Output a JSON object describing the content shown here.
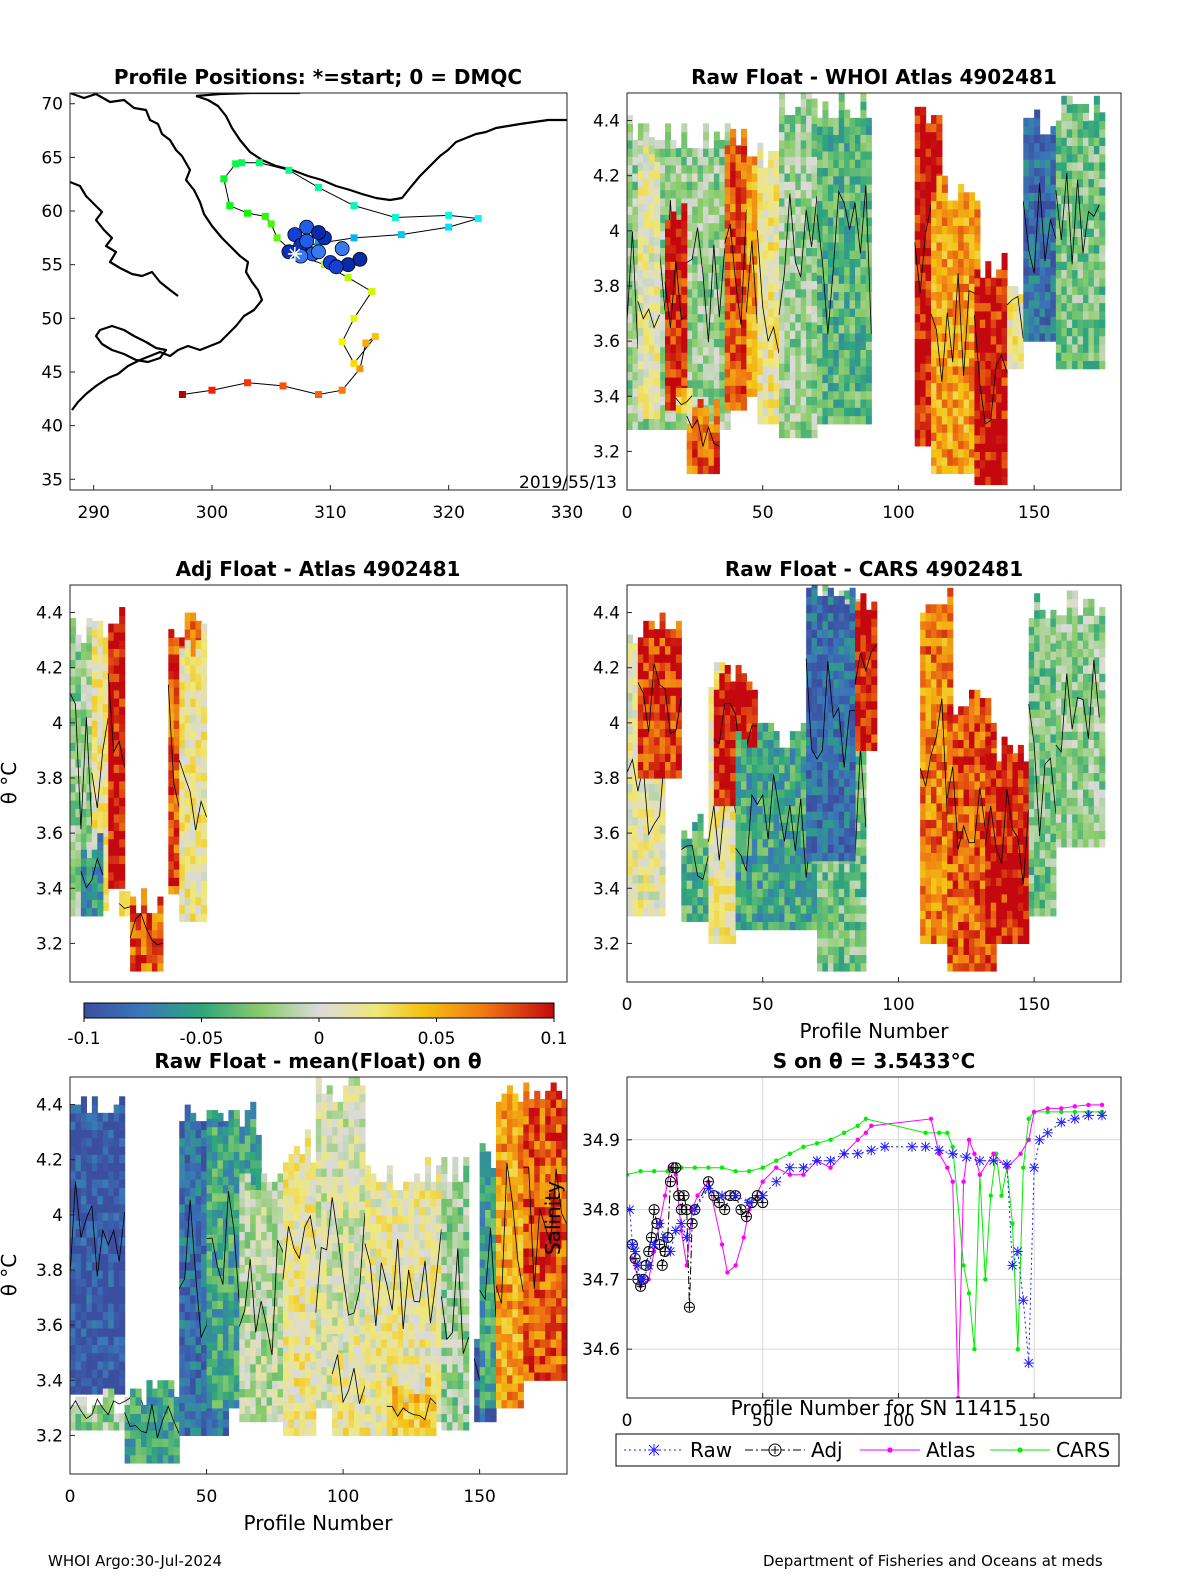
{
  "footer": {
    "left": "WHOI Argo:30-Jul-2024",
    "right": "Department of Fisheries and Oceans at meds"
  },
  "colors": {
    "raw": "#1f1fff",
    "adj": "#000000",
    "atlas": "#ff00ff",
    "cars": "#00ee00"
  },
  "chart_data": [
    {
      "id": "positions",
      "type": "scatter",
      "title": "Profile Positions: *=start; 0 = DMQC",
      "annotation": "2019/55/13",
      "xlim": [
        288,
        330
      ],
      "ylim": [
        34,
        71
      ],
      "xticks": [
        290,
        300,
        310,
        320,
        330
      ],
      "yticks": [
        35,
        40,
        45,
        50,
        55,
        60,
        65,
        70
      ],
      "track_lon": [
        297.5,
        300.0,
        303.0,
        306.0,
        309.0,
        311.0,
        312.5,
        313.0,
        313.8,
        312.0,
        311.0,
        312.0,
        313.5,
        311.5,
        309.5,
        307.5,
        306.5,
        305.5,
        305.0,
        304.5,
        303.0,
        301.5,
        301.0,
        302.0,
        302.5,
        304.0,
        306.5,
        309.0,
        312.0,
        315.5,
        320.0,
        322.5,
        320.0,
        316.0,
        312.0,
        309.0,
        307.0
      ],
      "track_lat": [
        42.9,
        43.3,
        44.0,
        43.7,
        42.9,
        43.3,
        45.3,
        47.7,
        48.3,
        45.8,
        47.8,
        50.0,
        52.5,
        53.8,
        55.0,
        55.8,
        56.5,
        57.5,
        58.8,
        59.5,
        59.8,
        60.5,
        63.0,
        64.4,
        64.5,
        64.5,
        63.8,
        62.2,
        60.5,
        59.4,
        59.6,
        59.3,
        58.5,
        57.8,
        57.5,
        57.0,
        56.5
      ],
      "dmqc_lon": [
        307.0,
        308.0,
        309.5,
        311.0,
        312.5,
        310.0,
        308.5,
        307.5,
        309.0,
        311.5,
        310.5,
        308.0,
        306.5,
        307.5,
        309.0
      ],
      "dmqc_lat": [
        57.8,
        58.5,
        57.5,
        56.5,
        55.5,
        55.2,
        56.0,
        56.8,
        56.2,
        55.0,
        54.8,
        57.2,
        56.2,
        55.8,
        58.0
      ],
      "start_lon": 307.0,
      "start_lat": 56.0
    },
    {
      "id": "raw-atlas",
      "type": "heatmap",
      "title": "Raw Float - WHOI Atlas  4902481",
      "xlim": [
        0,
        182
      ],
      "ylim": [
        3.06,
        4.5
      ],
      "xticks": [
        0,
        50,
        100,
        150
      ],
      "yticks": [
        3.2,
        3.4,
        3.6,
        3.8,
        4,
        4.2,
        4.4
      ],
      "columns": [
        [
          0,
          38,
          3.28,
          4.4,
          -0.02
        ],
        [
          4,
          12,
          3.32,
          4.35,
          0.01
        ],
        [
          14,
          22,
          3.35,
          4.1,
          0.1
        ],
        [
          18,
          24,
          3.34,
          3.45,
          0.04
        ],
        [
          22,
          34,
          3.12,
          3.4,
          0.08
        ],
        [
          36,
          44,
          3.35,
          4.38,
          0.08
        ],
        [
          44,
          48,
          3.4,
          4.3,
          0.06
        ],
        [
          48,
          56,
          3.3,
          4.3,
          0.02
        ],
        [
          56,
          70,
          3.25,
          4.5,
          -0.02
        ],
        [
          70,
          90,
          3.3,
          4.5,
          -0.04
        ],
        [
          106,
          116,
          3.22,
          4.45,
          0.1
        ],
        [
          112,
          130,
          3.12,
          4.2,
          0.06
        ],
        [
          128,
          140,
          3.08,
          3.9,
          0.1
        ],
        [
          140,
          146,
          3.5,
          3.85,
          0.02
        ],
        [
          146,
          158,
          3.6,
          4.45,
          -0.08
        ],
        [
          158,
          175,
          3.5,
          4.48,
          -0.03
        ]
      ]
    },
    {
      "id": "adj-atlas",
      "type": "heatmap",
      "title": "Adj Float - Atlas  4902481",
      "ylabel": "θ °C",
      "xlim": [
        0,
        182
      ],
      "ylim": [
        3.06,
        4.5
      ],
      "yticks": [
        3.2,
        3.4,
        3.6,
        3.8,
        4,
        4.2,
        4.4
      ],
      "columns": [
        [
          0,
          8,
          3.3,
          4.38,
          -0.02
        ],
        [
          8,
          14,
          3.32,
          4.38,
          0.02
        ],
        [
          14,
          20,
          3.4,
          4.45,
          0.1
        ],
        [
          4,
          12,
          3.3,
          3.6,
          -0.06
        ],
        [
          18,
          24,
          3.3,
          3.4,
          0.04
        ],
        [
          22,
          34,
          3.1,
          3.38,
          0.08
        ],
        [
          36,
          48,
          3.38,
          4.4,
          0.08
        ],
        [
          40,
          50,
          3.28,
          4.35,
          0.02
        ]
      ]
    },
    {
      "id": "raw-cars",
      "type": "heatmap",
      "title": "Raw Float - CARS  4902481",
      "xlabel": "Profile Number",
      "xlim": [
        0,
        182
      ],
      "ylim": [
        3.06,
        4.5
      ],
      "xticks": [
        0,
        50,
        100,
        150
      ],
      "yticks": [
        3.2,
        3.4,
        3.6,
        3.8,
        4,
        4.2,
        4.4
      ],
      "columns": [
        [
          0,
          8,
          3.4,
          3.95,
          -0.09
        ],
        [
          0,
          14,
          3.3,
          4.35,
          0.01
        ],
        [
          4,
          20,
          3.8,
          4.4,
          0.09
        ],
        [
          20,
          30,
          3.28,
          3.65,
          -0.04
        ],
        [
          30,
          40,
          3.2,
          4.2,
          0.02
        ],
        [
          32,
          48,
          3.7,
          4.2,
          0.1
        ],
        [
          40,
          70,
          3.25,
          4.0,
          -0.05
        ],
        [
          70,
          88,
          3.1,
          4.5,
          -0.03
        ],
        [
          66,
          84,
          3.5,
          4.5,
          -0.08
        ],
        [
          84,
          92,
          3.9,
          4.5,
          0.1
        ],
        [
          108,
          120,
          3.2,
          4.5,
          0.07
        ],
        [
          118,
          136,
          3.1,
          4.1,
          0.08
        ],
        [
          132,
          148,
          3.2,
          3.95,
          0.1
        ],
        [
          148,
          158,
          3.3,
          4.45,
          -0.03
        ],
        [
          158,
          175,
          3.55,
          4.48,
          -0.02
        ]
      ]
    },
    {
      "id": "colorbar",
      "type": "heatmap",
      "clim": [
        -0.1,
        0.1
      ],
      "ticks": [
        "-0.1",
        "-0.05",
        "0",
        "0.05",
        "0.1"
      ]
    },
    {
      "id": "raw-mean",
      "type": "heatmap",
      "title": "Raw Float - mean(Float) on θ",
      "ylabel": "θ °C",
      "xlabel": "Profile Number",
      "xlim": [
        0,
        182
      ],
      "ylim": [
        3.06,
        4.5
      ],
      "xticks": [
        0,
        50,
        100,
        150
      ],
      "yticks": [
        3.2,
        3.4,
        3.6,
        3.8,
        4,
        4.2,
        4.4
      ],
      "columns": [
        [
          0,
          20,
          3.35,
          4.45,
          -0.095
        ],
        [
          0,
          30,
          3.22,
          3.38,
          -0.02
        ],
        [
          20,
          40,
          3.1,
          3.4,
          -0.05
        ],
        [
          40,
          58,
          3.2,
          4.4,
          -0.08
        ],
        [
          50,
          70,
          3.3,
          4.4,
          -0.05
        ],
        [
          62,
          84,
          3.25,
          4.2,
          -0.01
        ],
        [
          78,
          90,
          3.2,
          4.3,
          0.02
        ],
        [
          90,
          108,
          3.3,
          4.5,
          0.0
        ],
        [
          96,
          120,
          3.2,
          3.6,
          0.02
        ],
        [
          108,
          138,
          3.25,
          4.2,
          0.015
        ],
        [
          116,
          134,
          3.2,
          3.4,
          0.045
        ],
        [
          136,
          146,
          3.22,
          4.2,
          -0.02
        ],
        [
          148,
          156,
          3.25,
          3.6,
          -0.09
        ],
        [
          150,
          158,
          3.3,
          4.25,
          -0.05
        ],
        [
          156,
          166,
          3.3,
          4.5,
          0.06
        ],
        [
          166,
          182,
          3.4,
          4.5,
          0.08
        ]
      ]
    },
    {
      "id": "salinity",
      "type": "line",
      "title": "S on θ = 3.5433°C",
      "xlabel": "Profile Number for SN 11415",
      "ylabel": "Salinity",
      "xlim": [
        0,
        182
      ],
      "ylim": [
        34.53,
        34.99
      ],
      "xticks": [
        0,
        50,
        100,
        150
      ],
      "yticks": [
        34.6,
        34.7,
        34.8,
        34.9
      ],
      "series": [
        {
          "name": "Raw",
          "x": [
            1,
            2,
            3,
            4,
            5,
            6,
            8,
            10,
            12,
            14,
            16,
            18,
            20,
            22,
            25,
            30,
            35,
            40,
            45,
            50,
            55,
            60,
            65,
            70,
            75,
            80,
            85,
            90,
            95,
            105,
            110,
            115,
            120,
            125,
            130,
            135,
            140,
            142,
            144,
            146,
            148,
            150,
            152,
            155,
            160,
            165,
            170,
            175
          ],
          "y": [
            34.8,
            34.75,
            34.74,
            34.72,
            34.7,
            34.7,
            34.72,
            34.75,
            34.78,
            34.76,
            34.74,
            34.77,
            34.78,
            34.76,
            34.8,
            34.83,
            34.82,
            34.82,
            34.81,
            34.82,
            34.84,
            34.86,
            34.86,
            34.87,
            34.87,
            34.88,
            34.88,
            34.885,
            34.89,
            34.89,
            34.89,
            34.885,
            34.88,
            34.875,
            34.87,
            34.87,
            34.865,
            34.72,
            34.74,
            34.67,
            34.58,
            34.86,
            34.9,
            34.91,
            34.925,
            34.93,
            34.935,
            34.935
          ]
        },
        {
          "name": "Adj",
          "x": [
            2,
            3,
            4,
            5,
            6,
            7,
            8,
            9,
            10,
            11,
            12,
            13,
            14,
            15,
            16,
            17,
            18,
            19,
            20,
            21,
            22,
            23,
            24,
            25,
            30,
            32,
            34,
            36,
            38,
            40,
            42,
            44,
            46,
            48,
            50
          ],
          "y": [
            34.75,
            34.73,
            34.7,
            34.69,
            34.7,
            34.72,
            34.74,
            34.76,
            34.8,
            34.78,
            34.75,
            34.72,
            34.74,
            34.76,
            34.84,
            34.86,
            34.86,
            34.82,
            34.8,
            34.82,
            34.8,
            34.66,
            34.78,
            34.8,
            34.84,
            34.82,
            34.81,
            34.8,
            34.82,
            34.82,
            34.8,
            34.79,
            34.81,
            34.82,
            34.81
          ]
        },
        {
          "name": "Atlas",
          "x": [
            2,
            5,
            8,
            10,
            12,
            14,
            16,
            18,
            20,
            22,
            24,
            26,
            30,
            35,
            37,
            40,
            43,
            45,
            50,
            55,
            60,
            65,
            70,
            75,
            80,
            85,
            88,
            90,
            112,
            115,
            118,
            120,
            122,
            124,
            126,
            128,
            130,
            135,
            140,
            145,
            148,
            150,
            155,
            160,
            165,
            170,
            175
          ],
          "y": [
            34.73,
            34.69,
            34.7,
            34.74,
            34.78,
            34.82,
            34.86,
            34.85,
            34.77,
            34.72,
            34.8,
            34.82,
            34.84,
            34.75,
            34.71,
            34.72,
            34.76,
            34.8,
            34.84,
            34.86,
            34.85,
            34.85,
            34.87,
            34.86,
            34.88,
            34.9,
            34.91,
            34.92,
            34.93,
            34.88,
            34.86,
            34.84,
            34.53,
            34.84,
            34.9,
            34.88,
            34.85,
            34.88,
            34.86,
            34.88,
            34.9,
            34.94,
            34.945,
            34.945,
            34.948,
            34.95,
            34.95
          ]
        },
        {
          "name": "CARS",
          "x": [
            0,
            5,
            10,
            15,
            20,
            25,
            30,
            35,
            40,
            45,
            50,
            55,
            60,
            65,
            70,
            75,
            80,
            85,
            88,
            110,
            115,
            118,
            120,
            124,
            126,
            128,
            130,
            132,
            134,
            136,
            138,
            140,
            142,
            144,
            146,
            148,
            150,
            155,
            160,
            165,
            170,
            175
          ],
          "y": [
            34.85,
            34.855,
            34.855,
            34.855,
            34.86,
            34.86,
            34.86,
            34.86,
            34.855,
            34.855,
            34.86,
            34.87,
            34.88,
            34.89,
            34.895,
            34.9,
            34.91,
            34.92,
            34.93,
            34.91,
            34.91,
            34.91,
            34.89,
            34.72,
            34.68,
            34.6,
            34.85,
            34.7,
            34.82,
            34.88,
            34.82,
            34.86,
            34.78,
            34.6,
            34.86,
            34.93,
            34.94,
            34.94,
            34.94,
            34.94,
            34.94,
            34.94
          ]
        }
      ]
    }
  ]
}
